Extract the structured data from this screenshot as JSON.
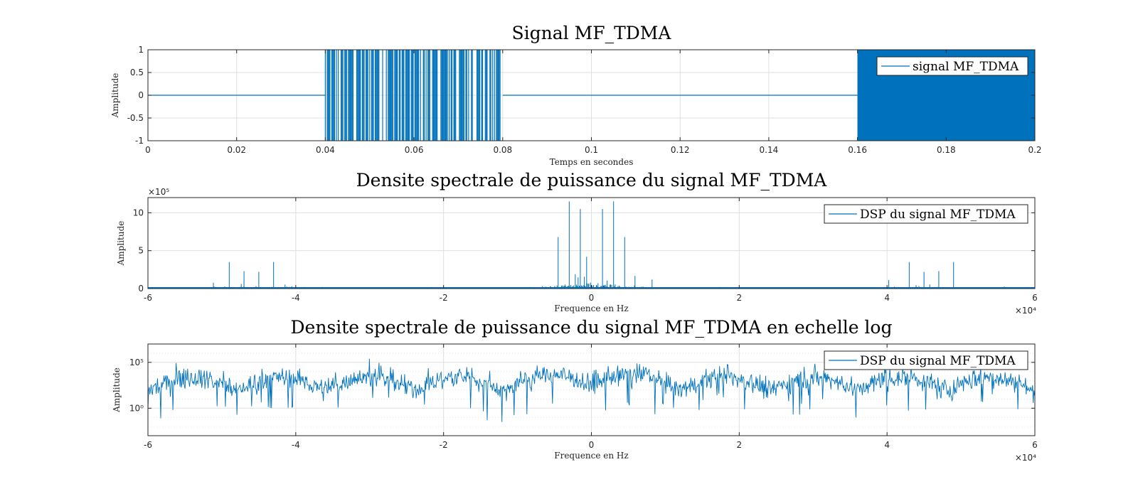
{
  "colors": {
    "signal": "#0072BD",
    "axis": "#262626",
    "grid": "#dfdfdf"
  },
  "chart_data": [
    {
      "type": "line",
      "title": "Signal MF_TDMA",
      "xlabel": "Temps en secondes",
      "ylabel": "Amplitude",
      "xlim": [
        0,
        0.2
      ],
      "ylim": [
        -1,
        1
      ],
      "xticks": [
        0,
        0.02,
        0.04,
        0.06,
        0.08,
        0.1,
        0.12,
        0.14,
        0.16,
        0.18,
        0.2
      ],
      "xtick_labels": [
        "0",
        "0.02",
        "0.04",
        "0.06",
        "0.08",
        "0.1",
        "0.12",
        "0.14",
        "0.16",
        "0.18",
        "0.2"
      ],
      "yticks": [
        -1,
        -0.5,
        0,
        0.5,
        1
      ],
      "ytick_labels": [
        "-1",
        "-0.5",
        "0",
        "0.5",
        "1"
      ],
      "grid": true,
      "legend_position": "top-right",
      "series": [
        {
          "name": "signal MF_TDMA"
        }
      ],
      "segments": [
        {
          "x_start": 0,
          "x_end": 0.04,
          "kind": "zero"
        },
        {
          "x_start": 0.04,
          "x_end": 0.08,
          "kind": "bursts"
        },
        {
          "x_start": 0.08,
          "x_end": 0.16,
          "kind": "zero"
        },
        {
          "x_start": 0.16,
          "x_end": 0.2,
          "kind": "dense"
        }
      ]
    },
    {
      "type": "line",
      "title": "Densite spectrale de puissance du signal MF_TDMA",
      "xlabel": "Frequence en Hz",
      "ylabel": "Amplitude",
      "xlim": [
        -60000,
        60000
      ],
      "ylim": [
        0,
        1200000
      ],
      "x_exponent": "×10⁴",
      "y_exponent": "×10⁵",
      "xticks": [
        -60000,
        -40000,
        -20000,
        0,
        20000,
        40000,
        60000
      ],
      "xtick_labels": [
        "-6",
        "-4",
        "-2",
        "0",
        "2",
        "4",
        "6"
      ],
      "yticks": [
        0,
        500000,
        1000000
      ],
      "ytick_labels": [
        "0",
        "5",
        "10"
      ],
      "grid": true,
      "legend_position": "top-right",
      "series": [
        {
          "name": "DSP du signal MF_TDMA"
        }
      ],
      "peaks": [
        {
          "x": -3000,
          "y": 1150000
        },
        {
          "x": 3000,
          "y": 1150000
        },
        {
          "x": -1500,
          "y": 1050000
        },
        {
          "x": 1500,
          "y": 1050000
        },
        {
          "x": -4500,
          "y": 680000
        },
        {
          "x": 4500,
          "y": 680000
        },
        {
          "x": -49000,
          "y": 350000
        },
        {
          "x": -43000,
          "y": 350000
        },
        {
          "x": -47000,
          "y": 230000
        },
        {
          "x": -45000,
          "y": 220000
        },
        {
          "x": 43000,
          "y": 350000
        },
        {
          "x": 49000,
          "y": 350000
        },
        {
          "x": 47000,
          "y": 230000
        },
        {
          "x": 45000,
          "y": 220000
        }
      ]
    },
    {
      "type": "line",
      "title": "Densite spectrale de puissance du signal MF_TDMA en echelle log",
      "xlabel": "Frequence en Hz",
      "ylabel": "Amplitude",
      "yscale": "log",
      "xlim": [
        -60000,
        60000
      ],
      "ylim": [
        0.001,
        10000000
      ],
      "x_exponent": "×10⁴",
      "xticks": [
        -60000,
        -40000,
        -20000,
        0,
        20000,
        40000,
        60000
      ],
      "xtick_labels": [
        "-6",
        "-4",
        "-2",
        "0",
        "2",
        "4",
        "6"
      ],
      "yticks": [
        1,
        100000
      ],
      "ytick_labels": [
        "10⁰",
        "10⁵"
      ],
      "grid": true,
      "legend_position": "top-right",
      "series": [
        {
          "name": "DSP du signal MF_TDMA"
        }
      ]
    }
  ]
}
